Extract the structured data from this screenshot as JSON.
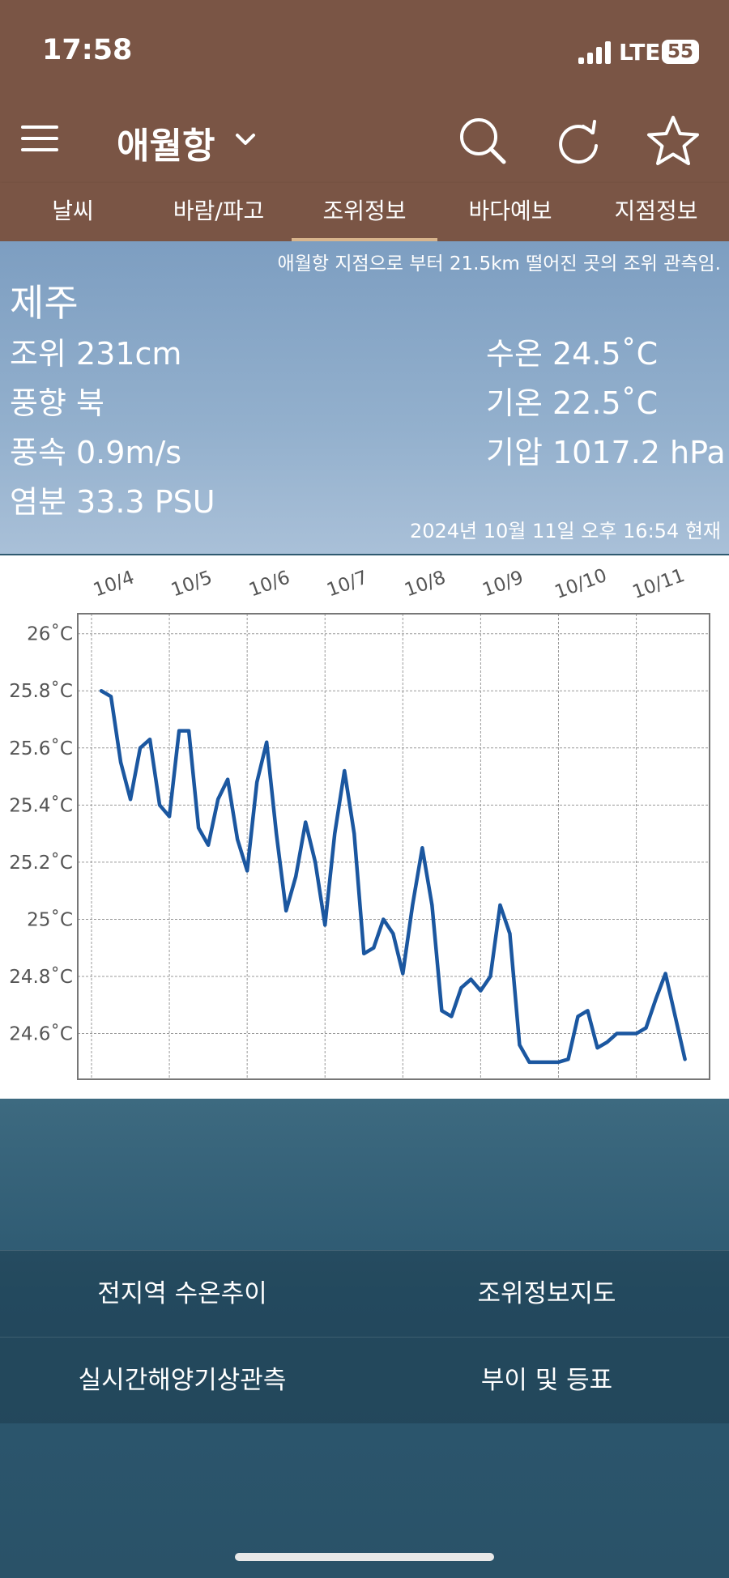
{
  "status_bar": {
    "time": "17:58",
    "network": "LTE",
    "battery": "55"
  },
  "header": {
    "location": "애월항"
  },
  "tabs": [
    "날씨",
    "바람/파고",
    "조위정보",
    "바다예보",
    "지점정보"
  ],
  "active_tab": 2,
  "station": {
    "note": "애월항 지점으로 부터 21.5km 떨어진 곳의 조위 관측임.",
    "name": "제주",
    "left": [
      "조위 231cm",
      "풍향 북",
      "풍속 0.9m/s",
      "염분 33.3 PSU"
    ],
    "right": [
      "수온 24.5˚C",
      "기온 22.5˚C",
      "기압 1017.2 hPa"
    ],
    "timestamp": "2024년 10월 11일 오후 16:54 현재"
  },
  "chart_data": {
    "type": "line",
    "color": "#1b57a0",
    "grid": true,
    "categories": [
      "10/4",
      null,
      null,
      null,
      null,
      null,
      null,
      null,
      "10/5",
      null,
      null,
      null,
      null,
      null,
      null,
      null,
      "10/6",
      null,
      null,
      null,
      null,
      null,
      null,
      null,
      "10/7",
      null,
      null,
      null,
      null,
      null,
      null,
      null,
      "10/8",
      null,
      null,
      null,
      null,
      null,
      null,
      null,
      "10/9",
      null,
      null,
      null,
      null,
      null,
      null,
      null,
      "10/10",
      null,
      null,
      null,
      null,
      null,
      null,
      null,
      "10/11",
      null,
      null,
      null,
      null,
      null
    ],
    "values": [
      null,
      25.8,
      25.78,
      25.55,
      25.42,
      25.6,
      25.63,
      25.4,
      25.36,
      25.66,
      25.66,
      25.32,
      25.26,
      25.42,
      25.49,
      25.28,
      25.17,
      25.48,
      25.62,
      25.3,
      25.03,
      25.15,
      25.34,
      25.2,
      24.98,
      25.3,
      25.52,
      25.3,
      24.88,
      24.9,
      25.0,
      24.95,
      24.81,
      25.05,
      25.25,
      25.05,
      24.68,
      24.66,
      24.76,
      24.79,
      24.75,
      24.8,
      25.05,
      24.95,
      24.56,
      24.5,
      24.5,
      24.5,
      24.5,
      24.51,
      24.66,
      24.68,
      24.55,
      24.57,
      24.6,
      24.6,
      24.6,
      24.62,
      24.72,
      24.81,
      24.66,
      24.51
    ],
    "ylim": [
      24.44,
      26.07
    ],
    "yticks": [
      {
        "value": 24.6,
        "label": "24.6˚C"
      },
      {
        "value": 24.8,
        "label": "24.8˚C"
      },
      {
        "value": 25,
        "label": "25˚C"
      },
      {
        "value": 25.2,
        "label": "25.2˚C"
      },
      {
        "value": 25.4,
        "label": "25.4˚C"
      },
      {
        "value": 25.6,
        "label": "25.6˚C"
      },
      {
        "value": 25.8,
        "label": "25.8˚C"
      },
      {
        "value": 26,
        "label": "26˚C"
      }
    ]
  },
  "buttons": [
    "전지역 수온추이",
    "조위정보지도",
    "실시간해양기상관측",
    "부이 및 등표"
  ]
}
